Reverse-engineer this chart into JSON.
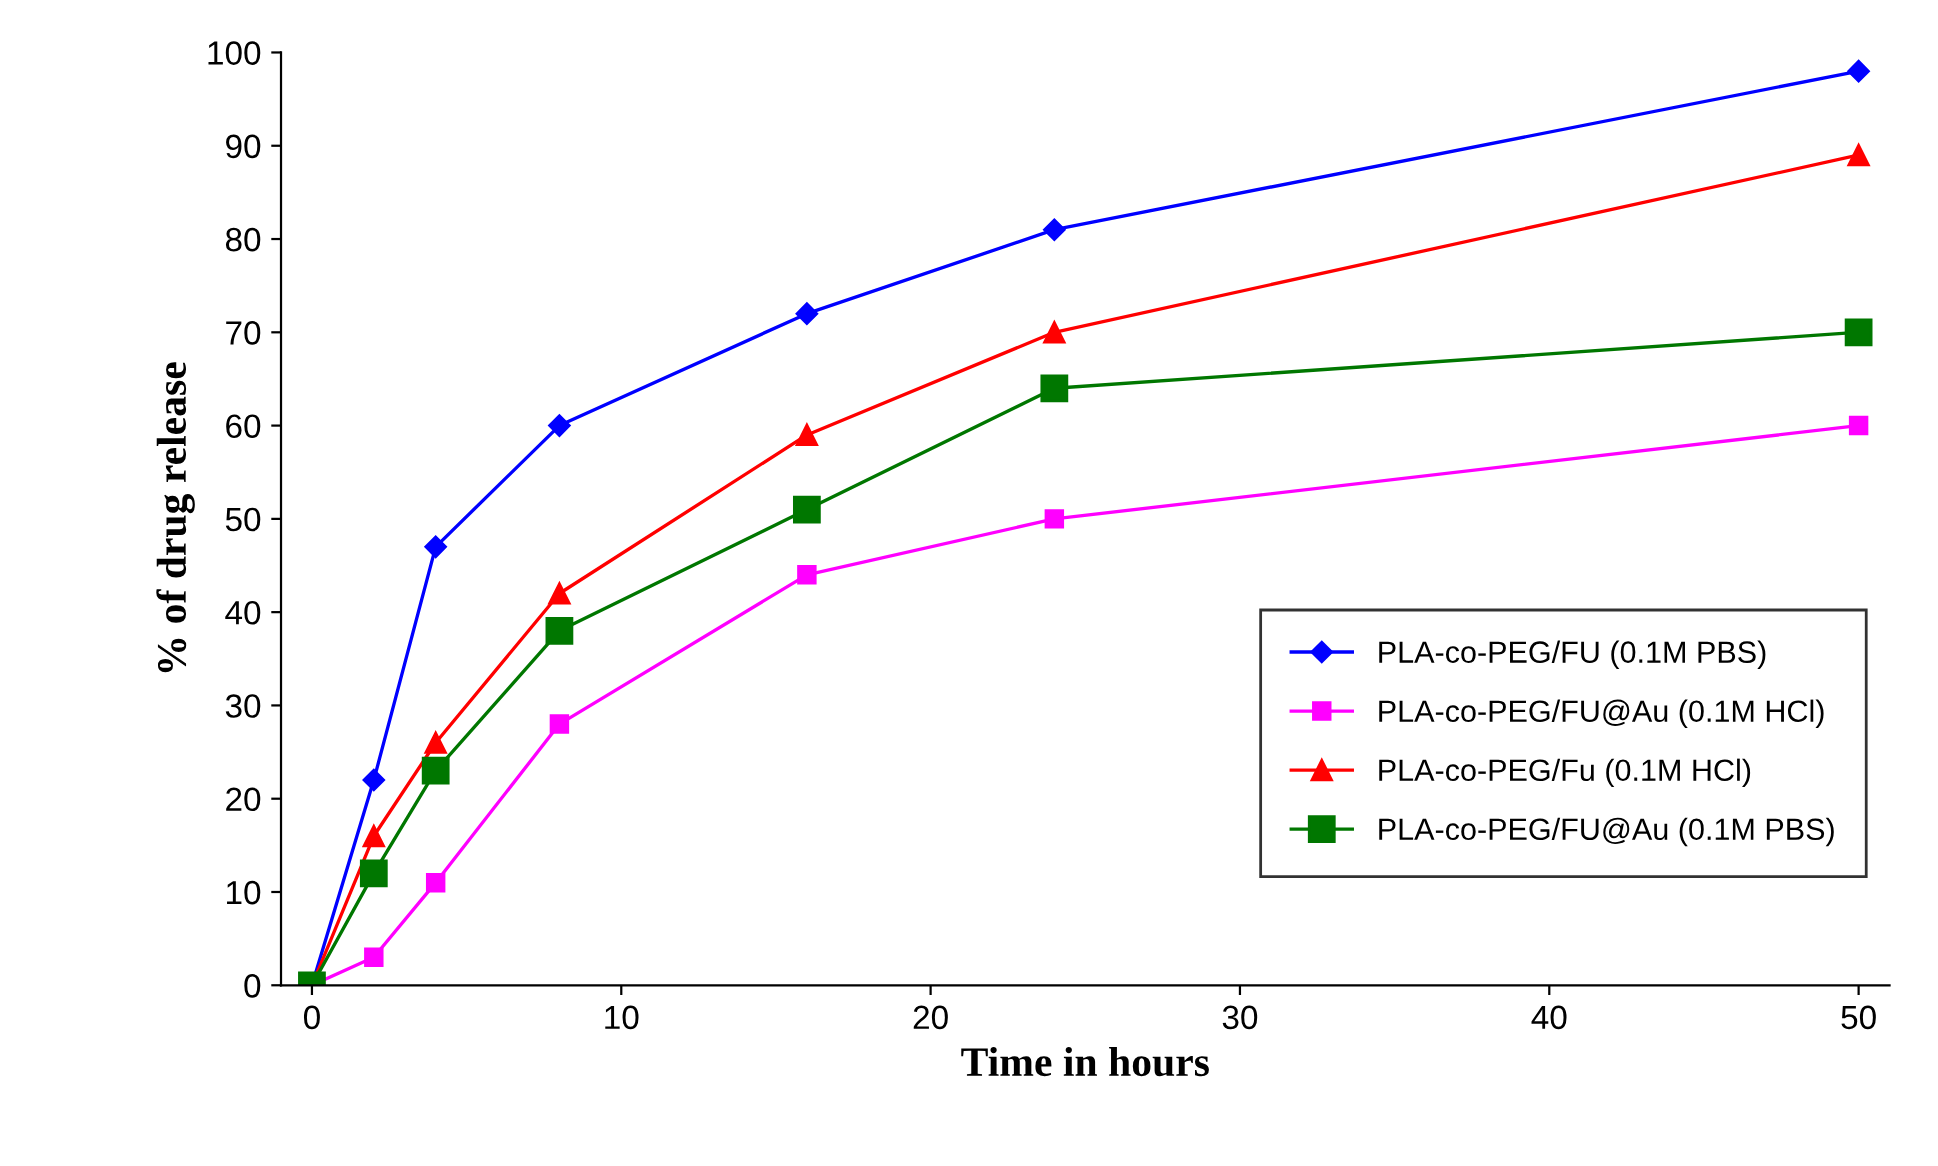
{
  "chart_data": {
    "type": "line",
    "xlabel": "Time in hours",
    "ylabel": "% of drug release",
    "x": [
      0,
      2,
      4,
      8,
      16,
      24,
      50
    ],
    "xlim": [
      -1,
      51
    ],
    "xticks": [
      0,
      10,
      20,
      30,
      40,
      50
    ],
    "ylim": [
      0,
      100
    ],
    "yticks": [
      0,
      10,
      20,
      30,
      40,
      50,
      60,
      70,
      80,
      90,
      100
    ],
    "grid": false,
    "legend": "bottom right",
    "line_style": "solid",
    "series": [
      {
        "name": "PLA-co-PEG/FU (0.1M PBS)",
        "color": "#0000ff",
        "marker": "diamond",
        "values": [
          0,
          22,
          47,
          60,
          72,
          81,
          98
        ]
      },
      {
        "name": "PLA-co-PEG/FU@Au (0.1M HCl)",
        "color": "#ff00ff",
        "marker": "square",
        "values": [
          0,
          3,
          11,
          28,
          44,
          50,
          60
        ]
      },
      {
        "name": "PLA-co-PEG/Fu (0.1M HCl)",
        "color": "#ff0000",
        "marker": "triangle",
        "values": [
          0,
          16,
          26,
          42,
          59,
          70,
          89
        ]
      },
      {
        "name": "PLA-co-PEG/FU@Au (0.1M PBS)",
        "color": "#007700",
        "marker": "square",
        "values": [
          0,
          12,
          23,
          38,
          51,
          64,
          70
        ]
      }
    ]
  }
}
